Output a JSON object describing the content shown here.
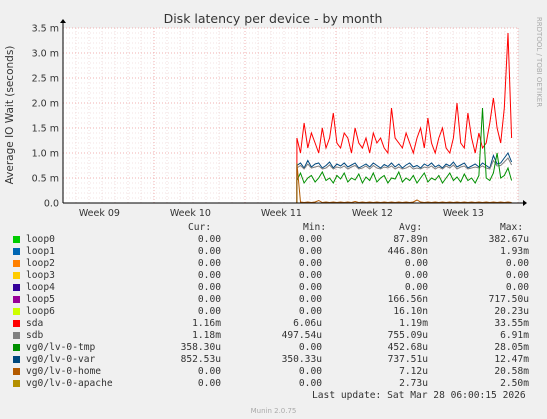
{
  "watermark": "RRDTOOL / TOBI OETIKER",
  "footer": "Munin 2.0.75",
  "last_update": "Last update: Sat Mar 28 06:00:15 2026",
  "legend_headers": {
    "cur": "Cur:",
    "min": "Min:",
    "avg": "Avg:",
    "max": "Max:"
  },
  "legend": [
    {
      "name": "loop0",
      "color": "#00cc00",
      "cur": "0.00",
      "min": "0.00",
      "avg": "87.89n",
      "max": "382.67u"
    },
    {
      "name": "loop1",
      "color": "#0066b3",
      "cur": "0.00",
      "min": "0.00",
      "avg": "446.80n",
      "max": "1.93m"
    },
    {
      "name": "loop2",
      "color": "#ff8000",
      "cur": "0.00",
      "min": "0.00",
      "avg": "0.00",
      "max": "0.00"
    },
    {
      "name": "loop3",
      "color": "#ffcc00",
      "cur": "0.00",
      "min": "0.00",
      "avg": "0.00",
      "max": "0.00"
    },
    {
      "name": "loop4",
      "color": "#330099",
      "cur": "0.00",
      "min": "0.00",
      "avg": "0.00",
      "max": "0.00"
    },
    {
      "name": "loop5",
      "color": "#990099",
      "cur": "0.00",
      "min": "0.00",
      "avg": "166.56n",
      "max": "717.50u"
    },
    {
      "name": "loop6",
      "color": "#ccff00",
      "cur": "0.00",
      "min": "0.00",
      "avg": "16.10n",
      "max": "20.23u"
    },
    {
      "name": "sda",
      "color": "#ff0000",
      "cur": "1.16m",
      "min": "6.06u",
      "avg": "1.19m",
      "max": "33.55m"
    },
    {
      "name": "sdb",
      "color": "#808080",
      "cur": "1.18m",
      "min": "497.54u",
      "avg": "755.09u",
      "max": "6.91m"
    },
    {
      "name": "vg0/lv-0-tmp",
      "color": "#008f00",
      "cur": "358.30u",
      "min": "0.00",
      "avg": "452.68u",
      "max": "28.05m"
    },
    {
      "name": "vg0/lv-0-var",
      "color": "#00487d",
      "cur": "852.53u",
      "min": "350.33u",
      "avg": "737.51u",
      "max": "12.47m"
    },
    {
      "name": "vg0/lv-0-home",
      "color": "#b35a00",
      "cur": "0.00",
      "min": "0.00",
      "avg": "7.12u",
      "max": "20.58m"
    },
    {
      "name": "vg0/lv-0-apache",
      "color": "#b38f00",
      "cur": "0.00",
      "min": "0.00",
      "avg": "2.73u",
      "max": "2.50m"
    }
  ],
  "chart_data": {
    "type": "line",
    "title": "Disk latency per device - by month",
    "ylabel": "Average IO Wait (seconds)",
    "ylim": [
      0,
      3.5
    ],
    "y_ticks": [
      0,
      0.5,
      1.0,
      1.5,
      2.0,
      2.5,
      3.0,
      3.5
    ],
    "y_tick_labels": [
      "0.0",
      "0.5 m",
      "1.0 m",
      "1.5 m",
      "2.0 m",
      "2.5 m",
      "3.0 m",
      "3.5 m"
    ],
    "y_unit": "ms",
    "x_ticks": [
      "Week 09",
      "Week 10",
      "Week 11",
      "Week 12",
      "Week 13"
    ],
    "xlim": [
      0,
      5
    ],
    "x_tick_positions": [
      0.4,
      1.4,
      2.4,
      3.4,
      4.4
    ],
    "grid": true,
    "series": [
      {
        "name": "sda",
        "color": "#ff0000",
        "x_start": 2.57,
        "x_end": 4.95,
        "step": 0.04,
        "values": [
          1.3,
          1.0,
          1.6,
          1.1,
          1.4,
          1.2,
          1.0,
          1.5,
          1.1,
          1.3,
          1.8,
          1.2,
          1.1,
          1.4,
          1.3,
          1.0,
          1.5,
          1.2,
          1.1,
          1.3,
          1.0,
          1.4,
          1.2,
          1.3,
          1.1,
          1.0,
          1.9,
          1.3,
          1.2,
          1.1,
          1.4,
          1.2,
          1.0,
          1.3,
          1.5,
          1.1,
          1.7,
          1.2,
          1.0,
          1.3,
          1.5,
          1.1,
          1.0,
          1.3,
          2.0,
          1.2,
          1.1,
          1.8,
          1.3,
          1.0,
          1.4,
          1.1,
          1.2,
          1.6,
          2.1,
          1.5,
          1.2,
          1.9,
          3.4,
          1.3,
          1.2,
          2.3,
          1.5,
          1.2,
          2.6,
          1.6,
          1.3,
          1.4,
          1.1,
          1.5
        ]
      },
      {
        "name": "vg0/lv-0-var",
        "color": "#00487d",
        "x_start": 2.57,
        "x_end": 4.95,
        "step": 0.04,
        "values": [
          0.75,
          0.8,
          0.7,
          0.85,
          0.72,
          0.78,
          0.8,
          0.7,
          0.75,
          0.82,
          0.7,
          0.78,
          0.74,
          0.8,
          0.72,
          0.76,
          0.8,
          0.7,
          0.74,
          0.78,
          0.72,
          0.8,
          0.75,
          0.7,
          0.77,
          0.73,
          0.8,
          0.72,
          0.78,
          0.7,
          0.76,
          0.8,
          0.72,
          0.75,
          0.7,
          0.78,
          0.74,
          0.8,
          0.72,
          0.76,
          0.7,
          0.78,
          0.74,
          0.82,
          0.72,
          0.76,
          0.8,
          0.7,
          0.74,
          0.78,
          0.72,
          0.8,
          0.75,
          0.7,
          0.95,
          0.78,
          0.8,
          0.9,
          1.0,
          0.82,
          0.8,
          0.9,
          1.0,
          0.85,
          1.05,
          0.9,
          0.82,
          1.5,
          0.88,
          1.0
        ]
      },
      {
        "name": "sdb",
        "color": "#808080",
        "x_start": 2.57,
        "x_end": 4.95,
        "step": 0.04,
        "values": [
          0.7,
          0.75,
          0.68,
          0.78,
          0.7,
          0.72,
          0.74,
          0.68,
          0.7,
          0.76,
          0.68,
          0.72,
          0.7,
          0.74,
          0.68,
          0.72,
          0.75,
          0.68,
          0.7,
          0.74,
          0.68,
          0.75,
          0.7,
          0.68,
          0.72,
          0.7,
          0.74,
          0.68,
          0.72,
          0.68,
          0.7,
          0.74,
          0.68,
          0.7,
          0.68,
          0.72,
          0.7,
          0.74,
          0.68,
          0.72,
          0.68,
          0.74,
          0.7,
          0.76,
          0.68,
          0.72,
          0.74,
          0.68,
          0.7,
          0.72,
          0.7,
          0.74,
          0.7,
          0.68,
          0.85,
          0.74,
          0.75,
          0.82,
          0.9,
          0.76,
          0.75,
          0.85,
          0.9,
          0.78,
          0.95,
          0.82,
          0.76,
          1.2,
          0.8,
          0.9
        ]
      },
      {
        "name": "vg0/lv-0-tmp",
        "color": "#008f00",
        "x_start": 2.57,
        "x_end": 4.95,
        "step": 0.04,
        "values": [
          0.45,
          0.6,
          0.4,
          0.5,
          0.55,
          0.42,
          0.5,
          0.62,
          0.45,
          0.5,
          0.4,
          0.55,
          0.48,
          0.6,
          0.42,
          0.5,
          0.46,
          0.58,
          0.4,
          0.52,
          0.45,
          0.6,
          0.42,
          0.5,
          0.55,
          0.4,
          0.5,
          0.48,
          0.62,
          0.42,
          0.5,
          0.45,
          0.55,
          0.4,
          0.5,
          0.6,
          0.42,
          0.5,
          0.46,
          0.55,
          0.4,
          0.5,
          0.6,
          0.45,
          0.52,
          0.42,
          0.58,
          0.45,
          0.5,
          0.4,
          0.55,
          1.9,
          0.5,
          0.45,
          0.6,
          1.0,
          0.5,
          0.55,
          0.7,
          0.45,
          0.5,
          1.6,
          0.55,
          0.45,
          0.6,
          0.5,
          0.45,
          0.55,
          0.5,
          0.4
        ]
      },
      {
        "name": "vg0/lv-0-home",
        "color": "#b35a00",
        "x_start": 2.57,
        "x_end": 4.95,
        "step": 0.04,
        "values": [
          0.8,
          0.02,
          0.01,
          0.02,
          0.01,
          0.02,
          0.05,
          0.01,
          0.02,
          0.01,
          0.02,
          0.01,
          0.02,
          0.01,
          0.02,
          0.01,
          0.03,
          0.01,
          0.02,
          0.01,
          0.02,
          0.01,
          0.02,
          0.01,
          0.02,
          0.01,
          0.02,
          0.01,
          0.02,
          0.01,
          0.02,
          0.01,
          0.02,
          0.06,
          0.02,
          0.01,
          0.02,
          0.01,
          0.02,
          0.01,
          0.02,
          0.01,
          0.02,
          0.01,
          0.02,
          0.01,
          0.02,
          0.01,
          0.02,
          0.01,
          0.02,
          0.01,
          0.02,
          0.01,
          0.02,
          0.01,
          0.02,
          0.01,
          0.02,
          0.01,
          0.02,
          0.01,
          0.02,
          0.01,
          0.02,
          0.01,
          0.02,
          0.01,
          0.02,
          0.01
        ]
      }
    ]
  }
}
